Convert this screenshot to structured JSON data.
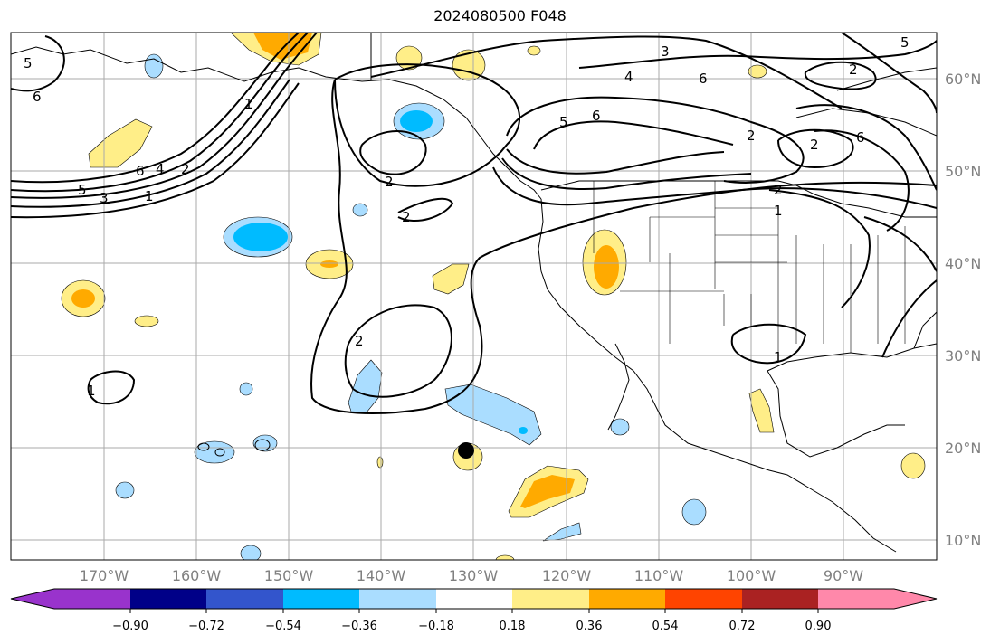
{
  "title": "2024080500 F048",
  "lat_labels": [
    "60°N",
    "50°N",
    "40°N",
    "30°N",
    "20°N",
    "10°N"
  ],
  "lon_labels": [
    "170°W",
    "160°W",
    "150°W",
    "140°W",
    "130°W",
    "120°W",
    "110°W",
    "100°W",
    "90°W"
  ],
  "colorbar": {
    "ticks": [
      "−0.90",
      "−0.72",
      "−0.54",
      "−0.36",
      "−0.18",
      "0.18",
      "0.36",
      "0.54",
      "0.72",
      "0.90"
    ],
    "colors": [
      "#9933cc",
      "#000088",
      "#3355cc",
      "#00bbff",
      "#aaddff",
      "#ffffff",
      "#ffee88",
      "#ffaa00",
      "#ff4400",
      "#aa2222",
      "#ff88aa"
    ]
  },
  "contour_labels": [
    "5",
    "6",
    "6",
    "4",
    "2",
    "1",
    "3",
    "5",
    "2",
    "2",
    "2",
    "1",
    "2",
    "1",
    "1",
    "3",
    "4",
    "6",
    "6",
    "5",
    "2",
    "6",
    "2",
    "5",
    "2",
    "1",
    "2",
    "1"
  ]
}
